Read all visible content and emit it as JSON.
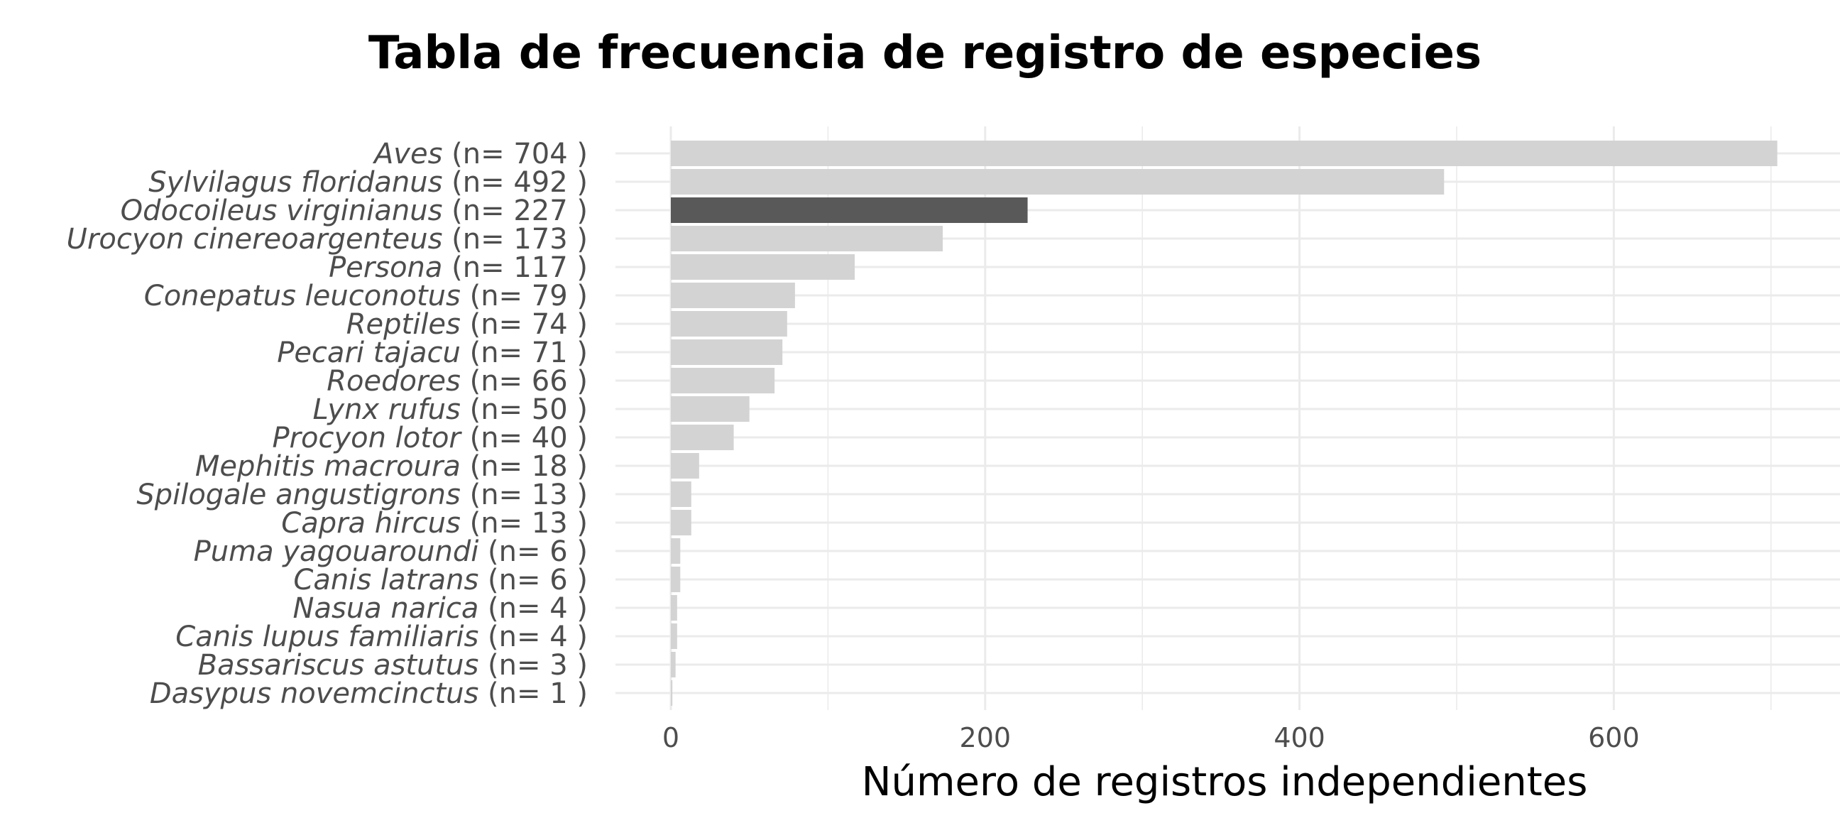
{
  "chart_data": {
    "type": "bar",
    "orientation": "horizontal",
    "title": "Tabla de frecuencia de registro de especies",
    "xlabel": "Número de registros independientes",
    "ylabel": "",
    "xlim": [
      0,
      720
    ],
    "x_ticks": [
      0,
      200,
      400,
      600
    ],
    "x_tick_labels": [
      "0",
      "200",
      "400",
      "600"
    ],
    "grid": true,
    "legend": "none",
    "categories": [
      "Aves",
      "Sylvilagus floridanus",
      "Odocoileus virginianus",
      "Urocyon cinereoargenteus",
      "Persona",
      "Conepatus leuconotus",
      "Reptiles",
      "Pecari tajacu",
      "Roedores",
      "Lynx rufus",
      "Procyon lotor",
      "Mephitis macroura",
      "Spilogale angustigrons",
      "Capra hircus",
      "Puma yagouaroundi",
      "Canis latrans",
      "Nasua narica",
      "Canis lupus familiaris",
      "Bassariscus astutus",
      "Dasypus novemcinctus"
    ],
    "count_labels": [
      "(n= 704 )",
      "(n= 492 )",
      "(n= 227 )",
      "(n= 173 )",
      "(n= 117 )",
      "(n= 79 )",
      "(n= 74 )",
      "(n= 71 )",
      "(n= 66 )",
      "(n= 50 )",
      "(n= 40 )",
      "(n= 18 )",
      "(n= 13 )",
      "(n= 13 )",
      "(n= 6 )",
      "(n= 6 )",
      "(n= 4 )",
      "(n= 4 )",
      "(n= 3 )",
      "(n= 1 )"
    ],
    "values": [
      704,
      492,
      227,
      173,
      117,
      79,
      74,
      71,
      66,
      50,
      40,
      18,
      13,
      13,
      6,
      6,
      4,
      4,
      3,
      1
    ],
    "highlighted_category": "Odocoileus virginianus",
    "colors": {
      "bar": "#d3d3d3",
      "highlight": "#595959",
      "grid": "#ebebeb",
      "tick_text": "#4d4d4d",
      "title_text": "#000000"
    }
  }
}
